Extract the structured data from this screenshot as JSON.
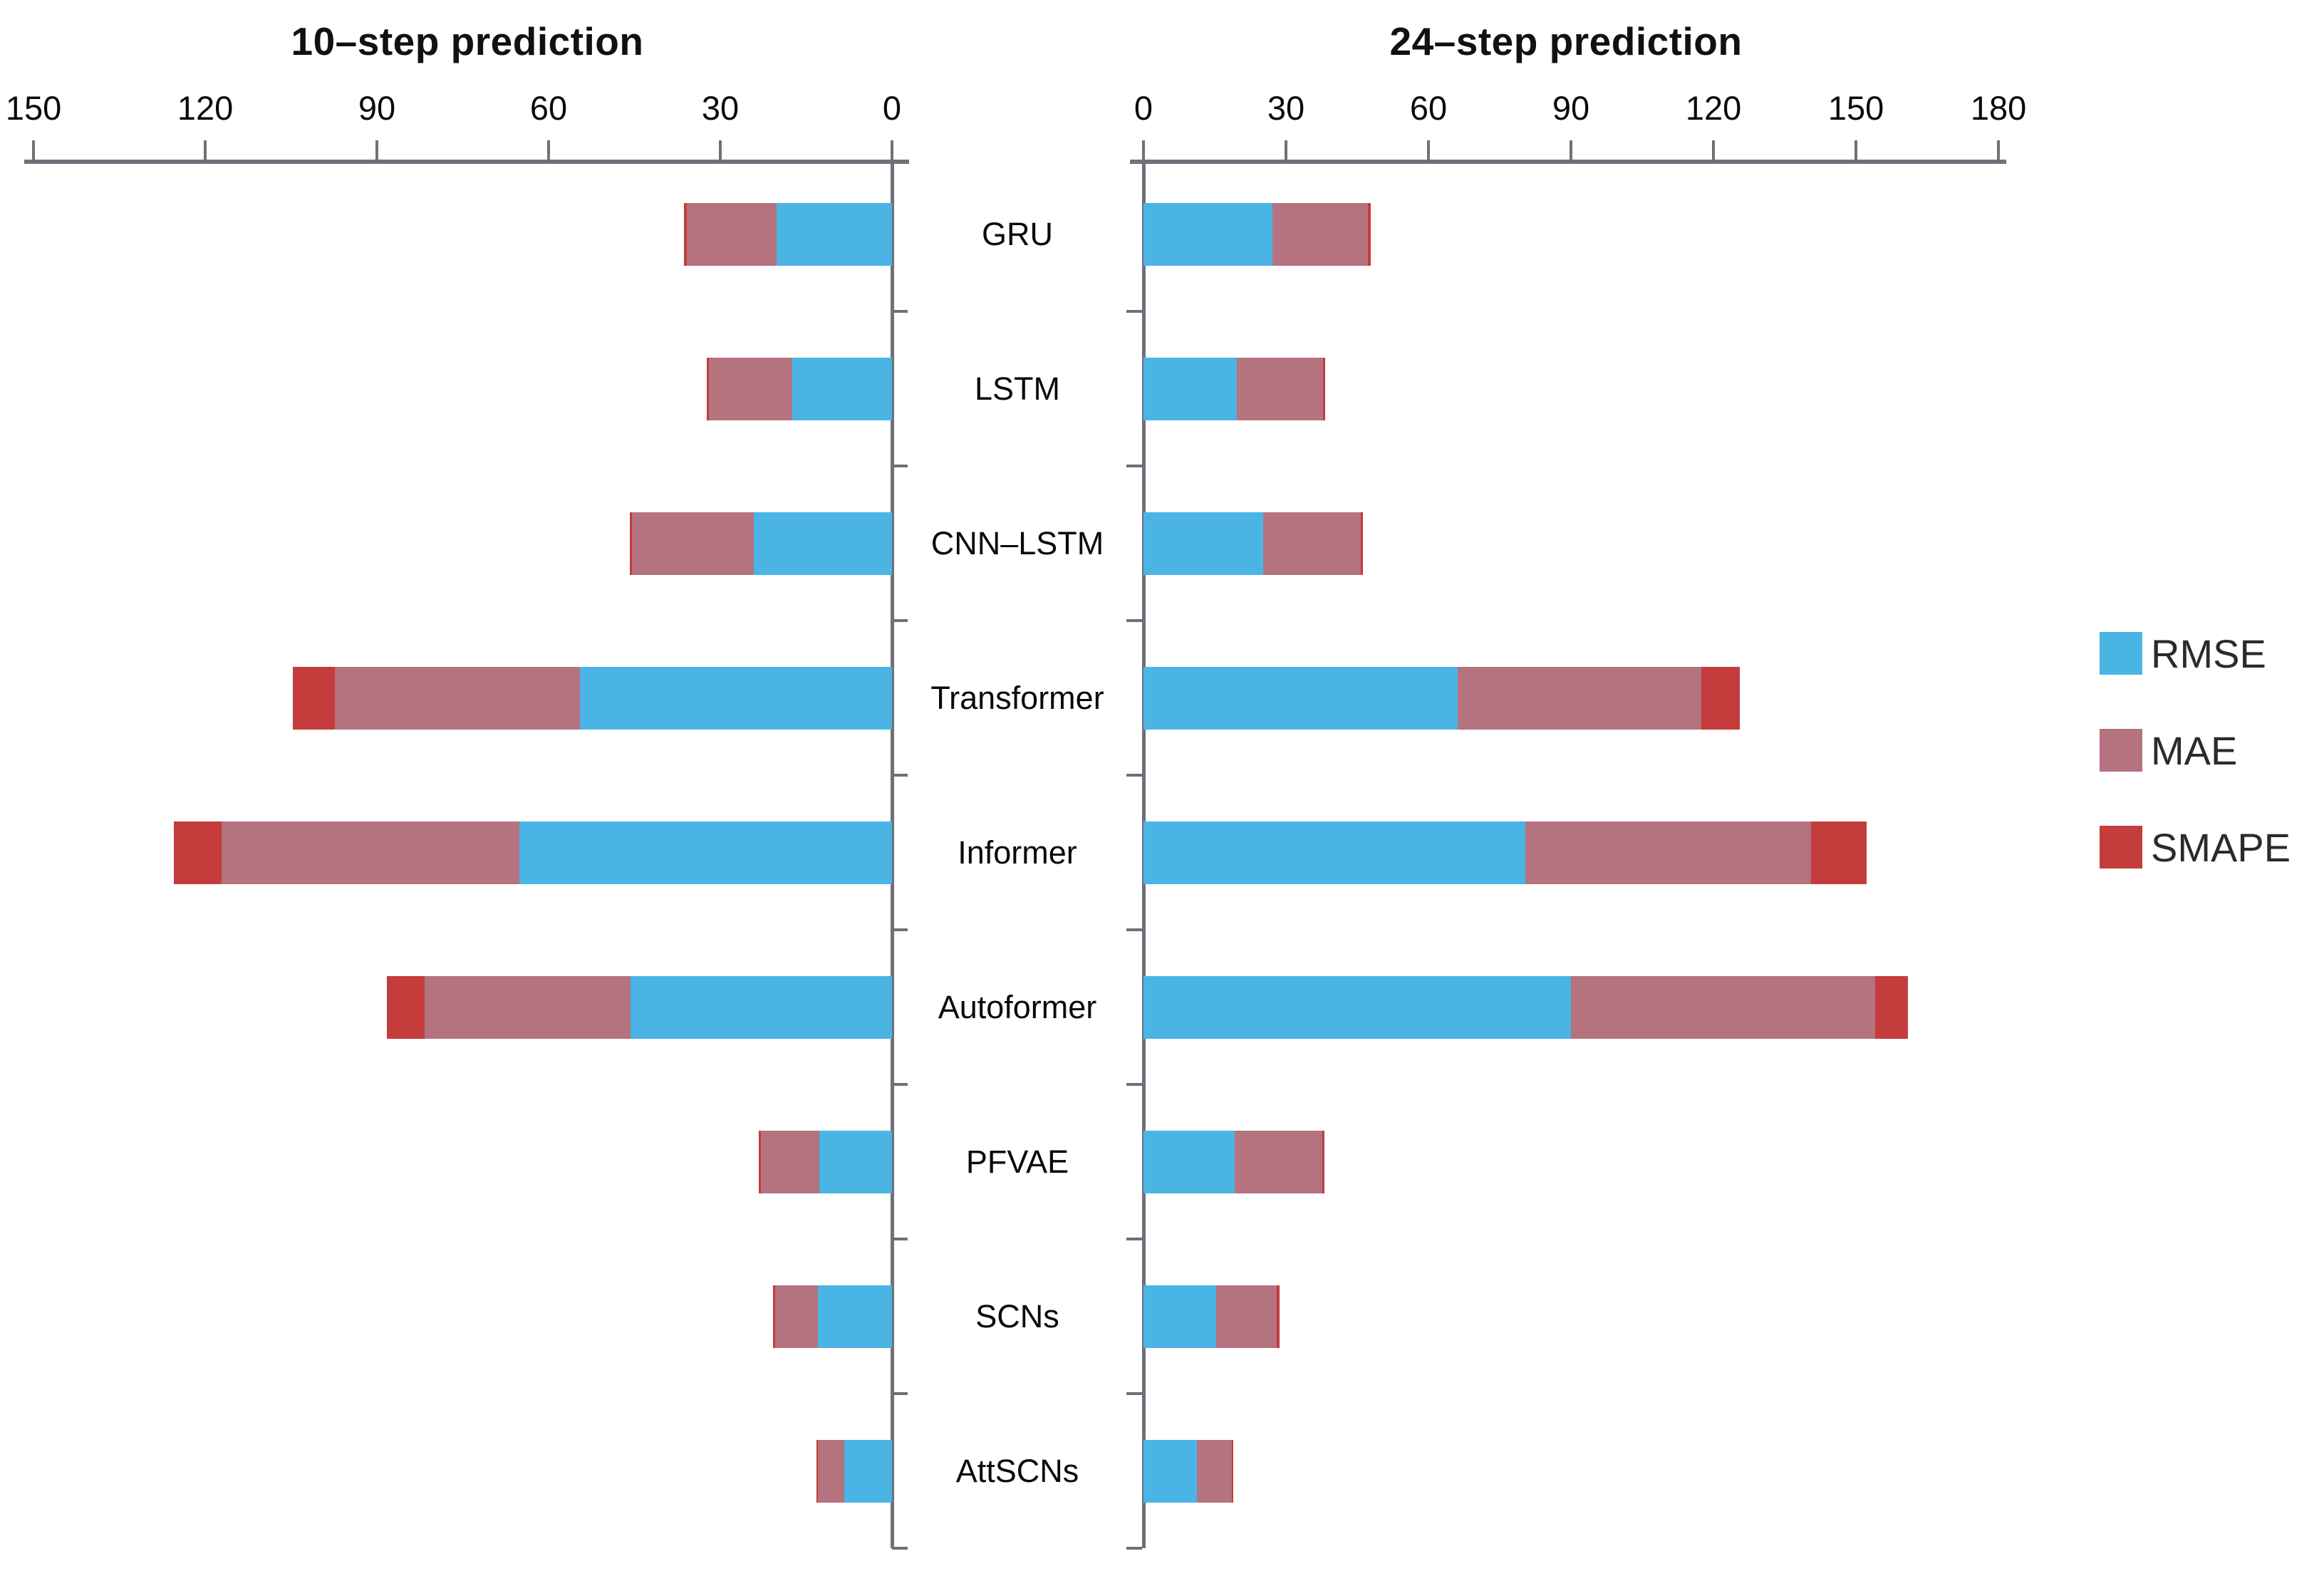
{
  "titles": {
    "left": "10–step prediction",
    "right": "24–step prediction"
  },
  "categories": [
    "GRU",
    "LSTM",
    "CNN–LSTM",
    "Transformer",
    "Informer",
    "Autoformer",
    "PFVAE",
    "SCNs",
    "AttSCNs"
  ],
  "axes": {
    "left_ticks": [
      150,
      120,
      90,
      60,
      30,
      0
    ],
    "right_ticks": [
      0,
      30,
      60,
      90,
      120,
      150,
      180
    ]
  },
  "legend": {
    "entries": [
      {
        "label": "RMSE",
        "color": "#4ab4e4"
      },
      {
        "label": "MAE",
        "color": "#b5727f"
      },
      {
        "label": "SMAPE",
        "color": "#c43c3c"
      }
    ]
  },
  "colors": {
    "rmse": "#4ab4e4",
    "mae": "#b5727f",
    "smape": "#c43c3c",
    "axis": "#70707a",
    "text": "#0a0a0a"
  },
  "chart_data": [
    {
      "type": "bar",
      "orientation": "horizontal-stacked",
      "title": "10–step prediction",
      "axis_reversed": true,
      "xlim": [
        0,
        150
      ],
      "grid": false,
      "categories": [
        "GRU",
        "LSTM",
        "CNN–LSTM",
        "Transformer",
        "Informer",
        "Autoformer",
        "PFVAE",
        "SCNs",
        "AttSCNs"
      ],
      "series": [
        {
          "name": "RMSE",
          "values": [
            20.2,
            17.4,
            24.2,
            54.5,
            65.1,
            45.7,
            12.7,
            12.9,
            8.3
          ]
        },
        {
          "name": "MAE",
          "values": [
            15.7,
            14.6,
            21.2,
            42.9,
            52.1,
            36.0,
            10.2,
            7.5,
            4.6
          ]
        },
        {
          "name": "SMAPE",
          "values": [
            0.5,
            0.4,
            0.4,
            7.3,
            8.3,
            6.5,
            0.4,
            0.4,
            0.3
          ]
        }
      ]
    },
    {
      "type": "bar",
      "orientation": "horizontal-stacked",
      "title": "24–step prediction",
      "axis_reversed": false,
      "xlim": [
        0,
        180
      ],
      "grid": false,
      "categories": [
        "GRU",
        "LSTM",
        "CNN–LSTM",
        "Transformer",
        "Informer",
        "Autoformer",
        "PFVAE",
        "SCNs",
        "AttSCNs"
      ],
      "series": [
        {
          "name": "RMSE",
          "values": [
            27.1,
            19.6,
            25.2,
            66.1,
            80.4,
            90.0,
            19.2,
            15.3,
            11.2
          ]
        },
        {
          "name": "MAE",
          "values": [
            20.1,
            18.2,
            20.5,
            51.3,
            60.1,
            64.1,
            18.4,
            12.8,
            7.4
          ]
        },
        {
          "name": "SMAPE",
          "values": [
            0.6,
            0.4,
            0.5,
            8.2,
            11.7,
            6.9,
            0.5,
            0.5,
            0.3
          ]
        }
      ]
    }
  ]
}
